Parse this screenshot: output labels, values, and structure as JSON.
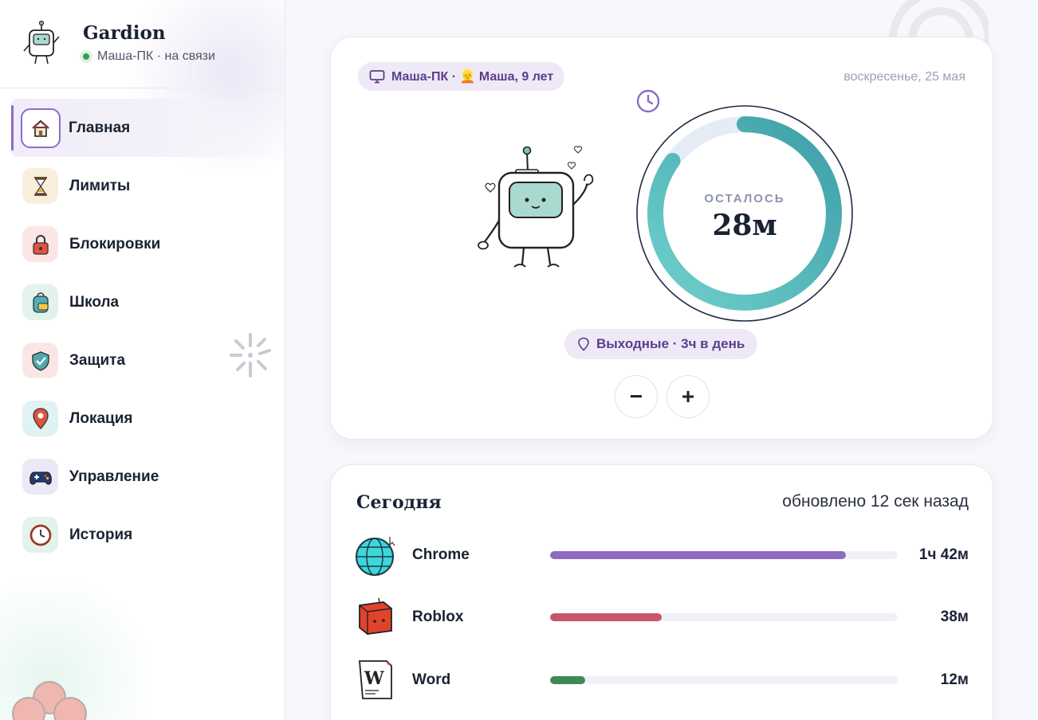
{
  "app": {
    "name": "Gardion",
    "status": "Маша-ПК · на связи"
  },
  "sidebar": {
    "items": [
      {
        "label": "Главная",
        "icon": "house-icon",
        "active": true
      },
      {
        "label": "Лимиты",
        "icon": "hourglass-icon"
      },
      {
        "label": "Блокировки",
        "icon": "padlock-icon"
      },
      {
        "label": "Школа",
        "icon": "backpack-icon"
      },
      {
        "label": "Защита",
        "icon": "shield-icon"
      },
      {
        "label": "Локация",
        "icon": "location-pin-icon"
      },
      {
        "label": "Управление",
        "icon": "gamepad-icon"
      },
      {
        "label": "История",
        "icon": "clock-icon"
      }
    ]
  },
  "timer": {
    "device": "Маша-ПК · 👱 Маша, 9 лет",
    "date": "воскресенье, 25 мая",
    "remaining_label": "ОСТАЛОСЬ",
    "remaining_value": "28м",
    "remaining_fraction": 0.85,
    "schedule": "Выходные · 3ч в день",
    "minus_label": "−",
    "plus_label": "+"
  },
  "today": {
    "title": "Сегодня",
    "updated": "обновлено 12 сек назад",
    "apps": [
      {
        "name": "Chrome",
        "time": "1ч 42м",
        "fraction": 0.85,
        "color": "#8e6bbf",
        "icon": "globe-icon"
      },
      {
        "name": "Roblox",
        "time": "38м",
        "fraction": 0.32,
        "color": "#c9556a",
        "icon": "roblox-cube-icon"
      },
      {
        "name": "Word",
        "time": "12м",
        "fraction": 0.1,
        "color": "#3d8a55",
        "icon": "word-document-icon"
      }
    ]
  }
}
